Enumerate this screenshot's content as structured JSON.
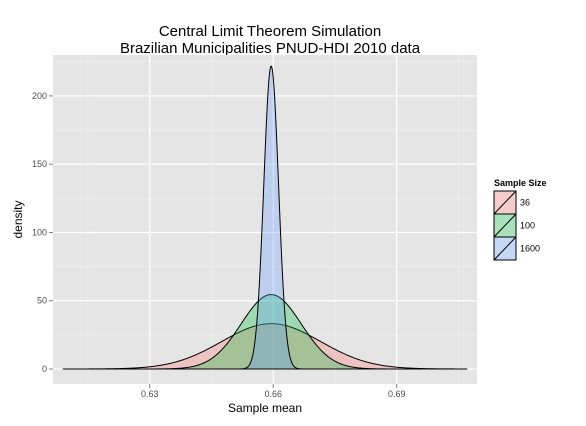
{
  "chart_data": {
    "type": "area",
    "title": [
      "Central Limit Theorem Simulation",
      "Brazilian Municipalities PNUD-HDI 2010 data"
    ],
    "xlabel": "Sample mean",
    "ylabel": "density",
    "xlim": [
      0.6065,
      0.7095
    ],
    "ylim": [
      -11,
      230
    ],
    "x_ticks": [
      0.63,
      0.66,
      0.69
    ],
    "x_tick_labels": [
      "0.63",
      "0.66",
      "0.69"
    ],
    "y_ticks": [
      0,
      50,
      100,
      150,
      200
    ],
    "y_tick_labels": [
      "0",
      "50",
      "100",
      "150",
      "200"
    ],
    "grid": true,
    "legend": {
      "title": "Sample Size",
      "placement": "right"
    },
    "x_range": [
      0.609,
      0.707
    ],
    "series": [
      {
        "name": "36",
        "center": 0.6595,
        "peak": 33.2,
        "sd": 0.012,
        "color": "#F8766D"
      },
      {
        "name": "100",
        "center": 0.6595,
        "peak": 54.5,
        "sd": 0.0073,
        "color": "#00BA38"
      },
      {
        "name": "1600",
        "center": 0.6595,
        "peak": 222.0,
        "sd": 0.0018,
        "color": "#619CFF"
      }
    ]
  }
}
